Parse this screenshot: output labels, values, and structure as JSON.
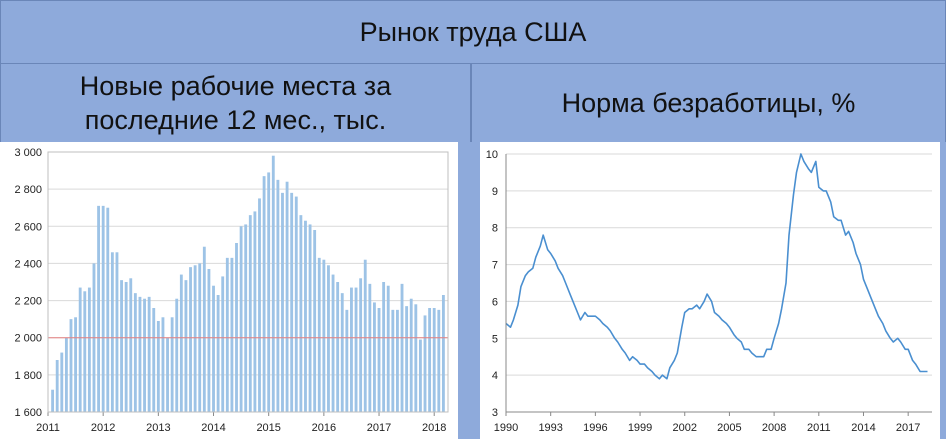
{
  "title": "Рынок труда США",
  "left_title": "Новые рабочие места за последние 12 мес., тыс.",
  "right_title": "Норма безработицы, %",
  "colors": {
    "bar": "#9dc3e6",
    "line": "#4a8fd0",
    "ref": "#e58080",
    "header": "#8eaadb"
  },
  "chart_data": [
    {
      "type": "bar",
      "x_ticks": [
        "2011",
        "2012",
        "2013",
        "2014",
        "2015",
        "2016",
        "2017",
        "2018"
      ],
      "y_ticks": [
        "1 600",
        "1 800",
        "2 000",
        "2 200",
        "2 400",
        "2 600",
        "2 800",
        "3 000"
      ],
      "ylim": [
        1600,
        3000
      ],
      "reference_line": 2000,
      "start": "2011-02",
      "values": [
        1720,
        1880,
        1920,
        2000,
        2100,
        2110,
        2270,
        2250,
        2270,
        2400,
        2710,
        2710,
        2700,
        2460,
        2460,
        2310,
        2300,
        2320,
        2240,
        2220,
        2210,
        2220,
        2160,
        2090,
        2110,
        2000,
        2110,
        2210,
        2340,
        2310,
        2380,
        2390,
        2400,
        2490,
        2370,
        2280,
        2230,
        2330,
        2430,
        2430,
        2510,
        2600,
        2610,
        2660,
        2680,
        2750,
        2870,
        2890,
        2980,
        2850,
        2780,
        2840,
        2780,
        2760,
        2660,
        2630,
        2610,
        2580,
        2430,
        2420,
        2390,
        2340,
        2300,
        2240,
        2150,
        2270,
        2270,
        2320,
        2420,
        2290,
        2190,
        2160,
        2300,
        2280,
        2150,
        2150,
        2290,
        2170,
        2210,
        2180,
        1990,
        2120,
        2160,
        2160,
        2150,
        2230
      ]
    },
    {
      "type": "line",
      "x_ticks": [
        "1990",
        "1993",
        "1996",
        "1999",
        "2002",
        "2005",
        "2008",
        "2011",
        "2014",
        "2017"
      ],
      "y_ticks": [
        "3",
        "4",
        "5",
        "6",
        "7",
        "8",
        "9",
        "10"
      ],
      "ylim": [
        3,
        10
      ],
      "points": [
        [
          1990.0,
          5.4
        ],
        [
          1990.3,
          5.3
        ],
        [
          1990.5,
          5.5
        ],
        [
          1990.8,
          5.9
        ],
        [
          1991.0,
          6.4
        ],
        [
          1991.3,
          6.7
        ],
        [
          1991.5,
          6.8
        ],
        [
          1991.8,
          6.9
        ],
        [
          1992.0,
          7.2
        ],
        [
          1992.3,
          7.5
        ],
        [
          1992.5,
          7.8
        ],
        [
          1992.8,
          7.4
        ],
        [
          1993.0,
          7.3
        ],
        [
          1993.3,
          7.1
        ],
        [
          1993.5,
          6.9
        ],
        [
          1993.8,
          6.7
        ],
        [
          1994.0,
          6.5
        ],
        [
          1994.3,
          6.2
        ],
        [
          1994.5,
          6.0
        ],
        [
          1994.8,
          5.7
        ],
        [
          1995.0,
          5.5
        ],
        [
          1995.3,
          5.7
        ],
        [
          1995.5,
          5.6
        ],
        [
          1995.8,
          5.6
        ],
        [
          1996.0,
          5.6
        ],
        [
          1996.3,
          5.5
        ],
        [
          1996.5,
          5.4
        ],
        [
          1996.8,
          5.3
        ],
        [
          1997.0,
          5.2
        ],
        [
          1997.3,
          5.0
        ],
        [
          1997.5,
          4.9
        ],
        [
          1997.8,
          4.7
        ],
        [
          1998.0,
          4.6
        ],
        [
          1998.3,
          4.4
        ],
        [
          1998.5,
          4.5
        ],
        [
          1998.8,
          4.4
        ],
        [
          1999.0,
          4.3
        ],
        [
          1999.3,
          4.3
        ],
        [
          1999.5,
          4.2
        ],
        [
          1999.8,
          4.1
        ],
        [
          2000.0,
          4.0
        ],
        [
          2000.3,
          3.9
        ],
        [
          2000.5,
          4.0
        ],
        [
          2000.8,
          3.9
        ],
        [
          2001.0,
          4.2
        ],
        [
          2001.3,
          4.4
        ],
        [
          2001.5,
          4.6
        ],
        [
          2001.8,
          5.3
        ],
        [
          2002.0,
          5.7
        ],
        [
          2002.3,
          5.8
        ],
        [
          2002.5,
          5.8
        ],
        [
          2002.8,
          5.9
        ],
        [
          2003.0,
          5.8
        ],
        [
          2003.3,
          6.0
        ],
        [
          2003.5,
          6.2
        ],
        [
          2003.8,
          6.0
        ],
        [
          2004.0,
          5.7
        ],
        [
          2004.3,
          5.6
        ],
        [
          2004.5,
          5.5
        ],
        [
          2004.8,
          5.4
        ],
        [
          2005.0,
          5.3
        ],
        [
          2005.3,
          5.1
        ],
        [
          2005.5,
          5.0
        ],
        [
          2005.8,
          4.9
        ],
        [
          2006.0,
          4.7
        ],
        [
          2006.3,
          4.7
        ],
        [
          2006.5,
          4.6
        ],
        [
          2006.8,
          4.5
        ],
        [
          2007.0,
          4.5
        ],
        [
          2007.3,
          4.5
        ],
        [
          2007.5,
          4.7
        ],
        [
          2007.8,
          4.7
        ],
        [
          2008.0,
          5.0
        ],
        [
          2008.3,
          5.4
        ],
        [
          2008.5,
          5.8
        ],
        [
          2008.8,
          6.5
        ],
        [
          2009.0,
          7.8
        ],
        [
          2009.3,
          8.9
        ],
        [
          2009.5,
          9.5
        ],
        [
          2009.8,
          10.0
        ],
        [
          2010.0,
          9.8
        ],
        [
          2010.3,
          9.6
        ],
        [
          2010.5,
          9.5
        ],
        [
          2010.8,
          9.8
        ],
        [
          2011.0,
          9.1
        ],
        [
          2011.3,
          9.0
        ],
        [
          2011.5,
          9.0
        ],
        [
          2011.8,
          8.7
        ],
        [
          2012.0,
          8.3
        ],
        [
          2012.3,
          8.2
        ],
        [
          2012.5,
          8.2
        ],
        [
          2012.8,
          7.8
        ],
        [
          2013.0,
          7.9
        ],
        [
          2013.3,
          7.6
        ],
        [
          2013.5,
          7.3
        ],
        [
          2013.8,
          7.0
        ],
        [
          2014.0,
          6.6
        ],
        [
          2014.3,
          6.3
        ],
        [
          2014.5,
          6.1
        ],
        [
          2014.8,
          5.8
        ],
        [
          2015.0,
          5.6
        ],
        [
          2015.3,
          5.4
        ],
        [
          2015.5,
          5.2
        ],
        [
          2015.8,
          5.0
        ],
        [
          2016.0,
          4.9
        ],
        [
          2016.3,
          5.0
        ],
        [
          2016.5,
          4.9
        ],
        [
          2016.8,
          4.7
        ],
        [
          2017.0,
          4.7
        ],
        [
          2017.3,
          4.4
        ],
        [
          2017.5,
          4.3
        ],
        [
          2017.8,
          4.1
        ],
        [
          2018.0,
          4.1
        ],
        [
          2018.3,
          4.1
        ]
      ]
    }
  ]
}
